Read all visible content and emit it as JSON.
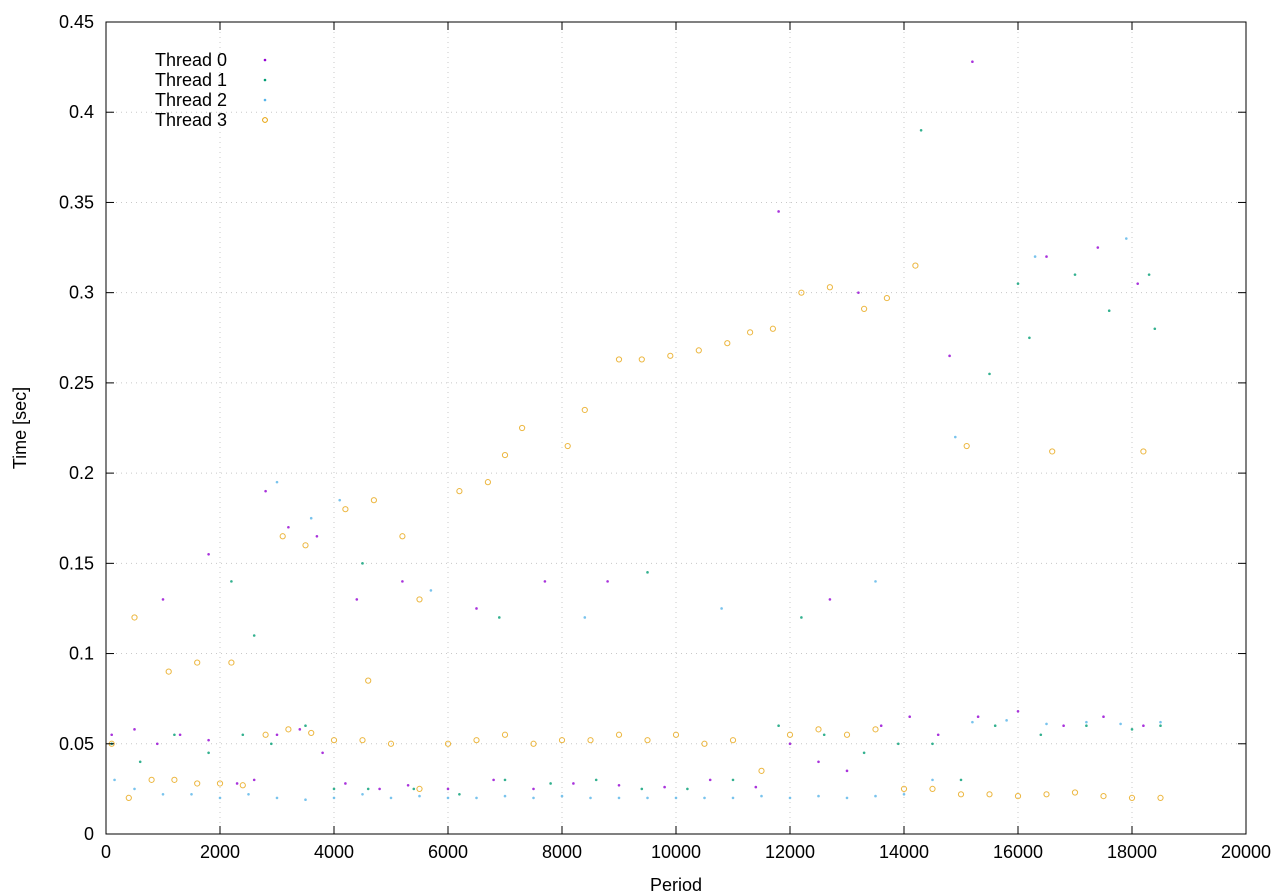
{
  "chart_data": {
    "type": "scatter",
    "title": "",
    "xlabel": "Period",
    "ylabel": "Time [sec]",
    "xlim": [
      0,
      20000
    ],
    "ylim": [
      0,
      0.45
    ],
    "xticks": [
      0,
      2000,
      4000,
      6000,
      8000,
      10000,
      12000,
      14000,
      16000,
      18000,
      20000
    ],
    "yticks": [
      0,
      0.05,
      0.1,
      0.15,
      0.2,
      0.25,
      0.3,
      0.35,
      0.4,
      0.45
    ],
    "xtick_labels": [
      "0",
      "2000",
      "4000",
      "6000",
      "8000",
      "10000",
      "12000",
      "14000",
      "16000",
      "18000",
      "20000"
    ],
    "ytick_labels": [
      "0",
      "0.05",
      "0.1",
      "0.15",
      "0.2",
      "0.25",
      "0.3",
      "0.35",
      "0.4",
      "0.45"
    ],
    "grid": true,
    "legend_position": "top-left",
    "series": [
      {
        "name": "Thread 0",
        "color": "#9400d3",
        "marker": "dot",
        "points": [
          [
            100,
            0.055
          ],
          [
            500,
            0.058
          ],
          [
            900,
            0.05
          ],
          [
            1300,
            0.055
          ],
          [
            1800,
            0.052
          ],
          [
            2300,
            0.028
          ],
          [
            2600,
            0.03
          ],
          [
            3000,
            0.055
          ],
          [
            3400,
            0.058
          ],
          [
            3800,
            0.045
          ],
          [
            4200,
            0.028
          ],
          [
            4800,
            0.025
          ],
          [
            5300,
            0.027
          ],
          [
            6000,
            0.025
          ],
          [
            6800,
            0.03
          ],
          [
            7500,
            0.025
          ],
          [
            8200,
            0.028
          ],
          [
            9000,
            0.027
          ],
          [
            9800,
            0.026
          ],
          [
            10600,
            0.03
          ],
          [
            11400,
            0.026
          ],
          [
            12000,
            0.05
          ],
          [
            12500,
            0.04
          ],
          [
            13000,
            0.035
          ],
          [
            13600,
            0.06
          ],
          [
            14100,
            0.065
          ],
          [
            14600,
            0.055
          ],
          [
            15300,
            0.065
          ],
          [
            16000,
            0.068
          ],
          [
            16800,
            0.06
          ],
          [
            17500,
            0.065
          ],
          [
            18200,
            0.06
          ],
          [
            1000,
            0.13
          ],
          [
            1800,
            0.155
          ],
          [
            2800,
            0.19
          ],
          [
            3200,
            0.17
          ],
          [
            3700,
            0.165
          ],
          [
            4400,
            0.13
          ],
          [
            5200,
            0.14
          ],
          [
            6500,
            0.125
          ],
          [
            7700,
            0.14
          ],
          [
            8800,
            0.14
          ],
          [
            11800,
            0.345
          ],
          [
            13200,
            0.3
          ],
          [
            15200,
            0.428
          ],
          [
            16500,
            0.32
          ],
          [
            17400,
            0.325
          ],
          [
            18100,
            0.305
          ],
          [
            12700,
            0.13
          ],
          [
            14800,
            0.265
          ]
        ]
      },
      {
        "name": "Thread 1",
        "color": "#009e73",
        "marker": "dot",
        "points": [
          [
            100,
            0.05
          ],
          [
            600,
            0.04
          ],
          [
            1200,
            0.055
          ],
          [
            1800,
            0.045
          ],
          [
            2400,
            0.055
          ],
          [
            2900,
            0.05
          ],
          [
            3500,
            0.06
          ],
          [
            4000,
            0.025
          ],
          [
            4600,
            0.025
          ],
          [
            5400,
            0.025
          ],
          [
            6200,
            0.022
          ],
          [
            7000,
            0.03
          ],
          [
            7800,
            0.028
          ],
          [
            8600,
            0.03
          ],
          [
            9400,
            0.025
          ],
          [
            10200,
            0.025
          ],
          [
            11000,
            0.03
          ],
          [
            11800,
            0.06
          ],
          [
            12600,
            0.055
          ],
          [
            13300,
            0.045
          ],
          [
            13900,
            0.05
          ],
          [
            14500,
            0.05
          ],
          [
            15000,
            0.03
          ],
          [
            15600,
            0.06
          ],
          [
            16400,
            0.055
          ],
          [
            17200,
            0.06
          ],
          [
            18000,
            0.058
          ],
          [
            18500,
            0.06
          ],
          [
            2200,
            0.14
          ],
          [
            2600,
            0.11
          ],
          [
            4500,
            0.15
          ],
          [
            6900,
            0.12
          ],
          [
            9500,
            0.145
          ],
          [
            12200,
            0.12
          ],
          [
            14300,
            0.39
          ],
          [
            15500,
            0.255
          ],
          [
            16000,
            0.305
          ],
          [
            17000,
            0.31
          ],
          [
            17600,
            0.29
          ],
          [
            18300,
            0.31
          ],
          [
            18400,
            0.28
          ],
          [
            16200,
            0.275
          ]
        ]
      },
      {
        "name": "Thread 2",
        "color": "#56b4e9",
        "marker": "dot",
        "points": [
          [
            150,
            0.03
          ],
          [
            500,
            0.025
          ],
          [
            1000,
            0.022
          ],
          [
            1500,
            0.022
          ],
          [
            2000,
            0.02
          ],
          [
            2500,
            0.022
          ],
          [
            3000,
            0.02
          ],
          [
            3500,
            0.019
          ],
          [
            4000,
            0.02
          ],
          [
            4500,
            0.022
          ],
          [
            5000,
            0.02
          ],
          [
            5500,
            0.021
          ],
          [
            6000,
            0.02
          ],
          [
            6500,
            0.02
          ],
          [
            7000,
            0.021
          ],
          [
            7500,
            0.02
          ],
          [
            8000,
            0.021
          ],
          [
            8500,
            0.02
          ],
          [
            9000,
            0.02
          ],
          [
            9500,
            0.02
          ],
          [
            10000,
            0.02
          ],
          [
            10500,
            0.02
          ],
          [
            11000,
            0.02
          ],
          [
            11500,
            0.021
          ],
          [
            12000,
            0.02
          ],
          [
            12500,
            0.021
          ],
          [
            13000,
            0.02
          ],
          [
            13500,
            0.021
          ],
          [
            14000,
            0.022
          ],
          [
            14500,
            0.03
          ],
          [
            15200,
            0.062
          ],
          [
            15800,
            0.063
          ],
          [
            16500,
            0.061
          ],
          [
            17200,
            0.062
          ],
          [
            17800,
            0.061
          ],
          [
            18500,
            0.062
          ],
          [
            3000,
            0.195
          ],
          [
            3600,
            0.175
          ],
          [
            4100,
            0.185
          ],
          [
            5700,
            0.135
          ],
          [
            8400,
            0.12
          ],
          [
            10800,
            0.125
          ],
          [
            13500,
            0.14
          ],
          [
            14900,
            0.22
          ],
          [
            16300,
            0.32
          ],
          [
            17900,
            0.33
          ]
        ]
      },
      {
        "name": "Thread 3",
        "color": "#e69f00",
        "marker": "circle",
        "points": [
          [
            100,
            0.05
          ],
          [
            400,
            0.02
          ],
          [
            800,
            0.03
          ],
          [
            1200,
            0.03
          ],
          [
            1600,
            0.028
          ],
          [
            2000,
            0.028
          ],
          [
            2400,
            0.027
          ],
          [
            2800,
            0.055
          ],
          [
            3200,
            0.058
          ],
          [
            3600,
            0.056
          ],
          [
            4000,
            0.052
          ],
          [
            4500,
            0.052
          ],
          [
            5000,
            0.05
          ],
          [
            5500,
            0.025
          ],
          [
            6000,
            0.05
          ],
          [
            6500,
            0.052
          ],
          [
            7000,
            0.055
          ],
          [
            7500,
            0.05
          ],
          [
            8000,
            0.052
          ],
          [
            8500,
            0.052
          ],
          [
            9000,
            0.055
          ],
          [
            9500,
            0.052
          ],
          [
            10000,
            0.055
          ],
          [
            10500,
            0.05
          ],
          [
            11000,
            0.052
          ],
          [
            11500,
            0.035
          ],
          [
            12000,
            0.055
          ],
          [
            12500,
            0.058
          ],
          [
            13000,
            0.055
          ],
          [
            13500,
            0.058
          ],
          [
            14000,
            0.025
          ],
          [
            14500,
            0.025
          ],
          [
            15000,
            0.022
          ],
          [
            15500,
            0.022
          ],
          [
            16000,
            0.021
          ],
          [
            16500,
            0.022
          ],
          [
            17000,
            0.023
          ],
          [
            17500,
            0.021
          ],
          [
            18000,
            0.02
          ],
          [
            18500,
            0.02
          ],
          [
            500,
            0.12
          ],
          [
            1100,
            0.09
          ],
          [
            1600,
            0.095
          ],
          [
            2200,
            0.095
          ],
          [
            3100,
            0.165
          ],
          [
            3500,
            0.16
          ],
          [
            4200,
            0.18
          ],
          [
            4700,
            0.185
          ],
          [
            5200,
            0.165
          ],
          [
            6200,
            0.19
          ],
          [
            6700,
            0.195
          ],
          [
            7000,
            0.21
          ],
          [
            7300,
            0.225
          ],
          [
            8100,
            0.215
          ],
          [
            8400,
            0.235
          ],
          [
            9000,
            0.263
          ],
          [
            9400,
            0.263
          ],
          [
            9900,
            0.265
          ],
          [
            10400,
            0.268
          ],
          [
            10900,
            0.272
          ],
          [
            11300,
            0.278
          ],
          [
            11700,
            0.28
          ],
          [
            12200,
            0.3
          ],
          [
            12700,
            0.303
          ],
          [
            13300,
            0.291
          ],
          [
            13700,
            0.297
          ],
          [
            14200,
            0.315
          ],
          [
            15100,
            0.215
          ],
          [
            16600,
            0.212
          ],
          [
            18200,
            0.212
          ],
          [
            4600,
            0.085
          ],
          [
            5500,
            0.13
          ]
        ]
      }
    ]
  }
}
